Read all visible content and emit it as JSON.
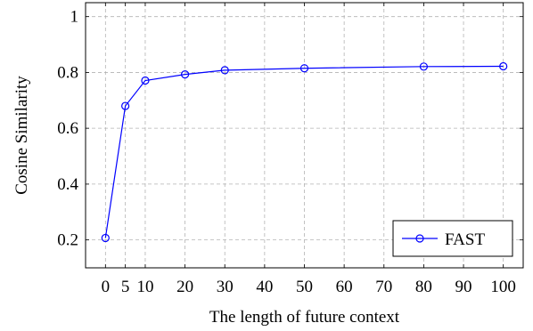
{
  "chart_data": {
    "type": "line",
    "xlabel": "The length of future context",
    "ylabel": "Cosine Similarity",
    "xlim": [
      -5,
      105
    ],
    "ylim": [
      0.1,
      1.05
    ],
    "xticks": [
      0,
      5,
      10,
      20,
      30,
      40,
      50,
      60,
      70,
      80,
      90,
      100
    ],
    "yticks": [
      0.2,
      0.4,
      0.6,
      0.8,
      1
    ],
    "ytick_labels": [
      "0.2",
      "0.4",
      "0.6",
      "0.8",
      "1"
    ],
    "grid": true,
    "legend_position": "bottom-right",
    "series": [
      {
        "name": "FAST",
        "color": "#0000ff",
        "marker": "circle",
        "x": [
          0,
          5,
          10,
          20,
          30,
          50,
          80,
          100
        ],
        "y": [
          0.207,
          0.68,
          0.771,
          0.793,
          0.808,
          0.815,
          0.821,
          0.822
        ]
      }
    ]
  }
}
